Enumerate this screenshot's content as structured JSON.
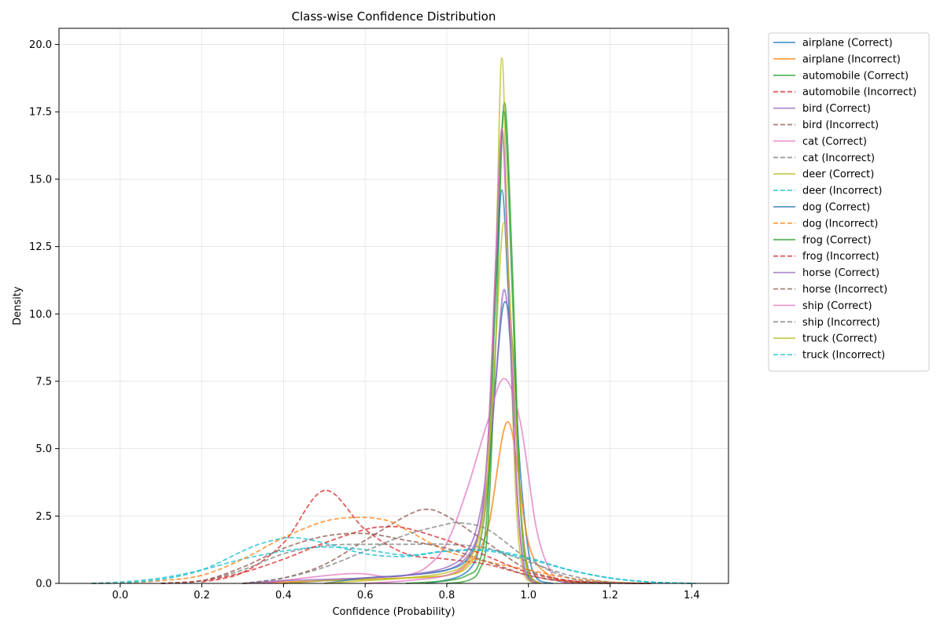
{
  "chart_data": {
    "type": "line",
    "title": "Class-wise Confidence Distribution",
    "xlabel": "Confidence (Probability)",
    "ylabel": "Density",
    "xlim": [
      -0.15,
      1.49
    ],
    "ylim": [
      0,
      20.6
    ],
    "xticks": [
      0.0,
      0.2,
      0.4,
      0.6,
      0.8,
      1.0,
      1.2,
      1.4
    ],
    "xtick_labels": [
      "0.0",
      "0.2",
      "0.4",
      "0.6",
      "0.8",
      "1.0",
      "1.2",
      "1.4"
    ],
    "yticks": [
      0.0,
      2.5,
      5.0,
      7.5,
      10.0,
      12.5,
      15.0,
      17.5,
      20.0
    ],
    "ytick_labels": [
      "0.0",
      "2.5",
      "5.0",
      "7.5",
      "10.0",
      "12.5",
      "15.0",
      "17.5",
      "20.0"
    ],
    "grid": true,
    "legend_position": "outside-top-right",
    "series": [
      {
        "name": "airplane (Correct)",
        "color": "#1f77b4",
        "dashed": false,
        "x": [
          0.75,
          0.82,
          0.86,
          0.88,
          0.9,
          0.92,
          0.94,
          0.96,
          0.98,
          1.0,
          1.02,
          1.06
        ],
        "y": [
          0.0,
          0.2,
          0.6,
          1.4,
          3.5,
          7.5,
          10.4,
          9.0,
          4.2,
          1.2,
          0.2,
          0.0
        ]
      },
      {
        "name": "airplane (Incorrect)",
        "color": "#ff7f0e",
        "dashed": false,
        "x": [
          0.3,
          0.4,
          0.5,
          0.6,
          0.7,
          0.8,
          0.85,
          0.9,
          0.95,
          1.0,
          1.05,
          1.1,
          1.2,
          1.3
        ],
        "y": [
          0.0,
          0.05,
          0.1,
          0.15,
          0.2,
          0.3,
          0.7,
          2.0,
          6.0,
          1.5,
          0.3,
          0.1,
          0.02,
          0.0
        ]
      },
      {
        "name": "automobile (Correct)",
        "color": "#2ca02c",
        "dashed": false,
        "x": [
          0.8,
          0.85,
          0.88,
          0.9,
          0.92,
          0.94,
          0.96,
          0.98,
          1.0,
          1.03
        ],
        "y": [
          0.0,
          0.1,
          0.5,
          2.0,
          9.0,
          17.8,
          12.0,
          3.0,
          0.3,
          0.0
        ]
      },
      {
        "name": "automobile (Incorrect)",
        "color": "#d62728",
        "dashed": true,
        "x": [
          0.2,
          0.3,
          0.4,
          0.5,
          0.6,
          0.7,
          0.8,
          0.9,
          1.0,
          1.1,
          1.2
        ],
        "y": [
          0.05,
          0.4,
          1.5,
          3.45,
          2.0,
          1.1,
          0.9,
          0.7,
          0.3,
          0.05,
          0.0
        ]
      },
      {
        "name": "bird (Correct)",
        "color": "#9467bd",
        "dashed": false,
        "x": [
          0.4,
          0.5,
          0.6,
          0.7,
          0.8,
          0.85,
          0.88,
          0.9,
          0.92,
          0.94,
          0.96,
          0.98,
          1.0,
          1.03
        ],
        "y": [
          0.0,
          0.1,
          0.2,
          0.3,
          0.5,
          1.0,
          2.0,
          4.0,
          7.5,
          10.9,
          8.0,
          3.0,
          0.5,
          0.0
        ]
      },
      {
        "name": "bird (Incorrect)",
        "color": "#8c564b",
        "dashed": true,
        "x": [
          0.3,
          0.4,
          0.5,
          0.6,
          0.7,
          0.75,
          0.8,
          0.9,
          1.0,
          1.1,
          1.2,
          1.3
        ],
        "y": [
          0.0,
          0.2,
          0.7,
          1.6,
          2.5,
          2.75,
          2.5,
          1.5,
          0.5,
          0.1,
          0.02,
          0.0
        ]
      },
      {
        "name": "cat (Correct)",
        "color": "#e377c2",
        "dashed": false,
        "x": [
          0.35,
          0.45,
          0.55,
          0.6,
          0.65,
          0.7,
          0.75,
          0.8,
          0.85,
          0.9,
          0.94,
          0.98,
          1.02,
          1.06,
          1.1
        ],
        "y": [
          0.0,
          0.2,
          0.35,
          0.35,
          0.25,
          0.3,
          0.6,
          1.5,
          3.5,
          6.0,
          7.6,
          6.0,
          2.0,
          0.3,
          0.0
        ]
      },
      {
        "name": "cat (Incorrect)",
        "color": "#7f7f7f",
        "dashed": true,
        "x": [
          0.1,
          0.2,
          0.3,
          0.4,
          0.5,
          0.6,
          0.7,
          0.8,
          0.9,
          1.0,
          1.1,
          1.2,
          1.3
        ],
        "y": [
          0.0,
          0.1,
          0.5,
          1.1,
          1.4,
          1.45,
          1.45,
          1.45,
          1.3,
          0.8,
          0.3,
          0.05,
          0.0
        ]
      },
      {
        "name": "deer (Correct)",
        "color": "#bcbd22",
        "dashed": false,
        "x": [
          0.4,
          0.5,
          0.6,
          0.7,
          0.8,
          0.85,
          0.88,
          0.9,
          0.92,
          0.935,
          0.95,
          0.97,
          0.99,
          1.02
        ],
        "y": [
          0.0,
          0.1,
          0.15,
          0.2,
          0.3,
          0.6,
          1.5,
          4.0,
          12.0,
          19.5,
          12.0,
          3.0,
          0.3,
          0.0
        ]
      },
      {
        "name": "deer (Incorrect)",
        "color": "#17becf",
        "dashed": true,
        "x": [
          -0.07,
          0.0,
          0.1,
          0.2,
          0.3,
          0.4,
          0.5,
          0.6,
          0.7,
          0.8,
          0.9,
          1.0,
          1.1,
          1.2,
          1.3,
          1.41
        ],
        "y": [
          0.0,
          0.05,
          0.2,
          0.5,
          0.9,
          1.2,
          1.35,
          1.25,
          1.05,
          1.2,
          1.2,
          0.9,
          0.5,
          0.2,
          0.05,
          0.0
        ]
      },
      {
        "name": "dog (Correct)",
        "color": "#1f77b4",
        "dashed": false,
        "x": [
          0.5,
          0.6,
          0.7,
          0.8,
          0.85,
          0.88,
          0.9,
          0.92,
          0.935,
          0.95,
          0.97,
          0.99,
          1.02
        ],
        "y": [
          0.0,
          0.2,
          0.3,
          0.5,
          0.9,
          2.0,
          5.0,
          11.0,
          14.6,
          11.0,
          4.0,
          0.6,
          0.0
        ]
      },
      {
        "name": "dog (Incorrect)",
        "color": "#ff7f0e",
        "dashed": true,
        "x": [
          -0.07,
          0.0,
          0.1,
          0.2,
          0.3,
          0.4,
          0.5,
          0.58,
          0.65,
          0.7,
          0.8,
          0.9,
          1.0,
          1.1,
          1.2,
          1.3
        ],
        "y": [
          0.0,
          0.02,
          0.1,
          0.3,
          0.9,
          1.7,
          2.3,
          2.45,
          2.35,
          2.0,
          1.2,
          0.8,
          0.5,
          0.2,
          0.05,
          0.0
        ]
      },
      {
        "name": "frog (Correct)",
        "color": "#2ca02c",
        "dashed": false,
        "x": [
          0.7,
          0.8,
          0.85,
          0.88,
          0.9,
          0.92,
          0.94,
          0.96,
          0.98,
          1.0,
          1.02
        ],
        "y": [
          0.0,
          0.1,
          0.3,
          0.8,
          3.0,
          11.0,
          17.5,
          11.0,
          3.0,
          0.4,
          0.0
        ]
      },
      {
        "name": "frog (Incorrect)",
        "color": "#d62728",
        "dashed": true,
        "x": [
          0.1,
          0.2,
          0.3,
          0.4,
          0.5,
          0.6,
          0.65,
          0.7,
          0.8,
          0.9,
          1.0,
          1.1,
          1.2,
          1.3
        ],
        "y": [
          0.0,
          0.1,
          0.4,
          0.9,
          1.5,
          2.0,
          2.1,
          2.05,
          1.6,
          1.0,
          0.4,
          0.1,
          0.02,
          0.0
        ]
      },
      {
        "name": "horse (Correct)",
        "color": "#9467bd",
        "dashed": false,
        "x": [
          0.3,
          0.4,
          0.5,
          0.6,
          0.7,
          0.8,
          0.85,
          0.88,
          0.9,
          0.92,
          0.935,
          0.95,
          0.97,
          0.99,
          1.02
        ],
        "y": [
          0.0,
          0.1,
          0.15,
          0.2,
          0.3,
          0.6,
          1.2,
          2.5,
          5.0,
          12.0,
          16.8,
          12.0,
          4.0,
          0.5,
          0.0
        ]
      },
      {
        "name": "horse (Incorrect)",
        "color": "#8c564b",
        "dashed": true,
        "x": [
          0.1,
          0.2,
          0.3,
          0.4,
          0.5,
          0.6,
          0.7,
          0.8,
          0.9,
          1.0,
          1.1,
          1.2
        ],
        "y": [
          0.0,
          0.1,
          0.6,
          1.3,
          1.75,
          1.85,
          1.6,
          1.3,
          0.8,
          0.3,
          0.05,
          0.0
        ]
      },
      {
        "name": "ship (Correct)",
        "color": "#e377c2",
        "dashed": false,
        "x": [
          0.6,
          0.7,
          0.8,
          0.85,
          0.88,
          0.9,
          0.92,
          0.935,
          0.95,
          0.97,
          0.99,
          1.02
        ],
        "y": [
          0.0,
          0.1,
          0.3,
          0.8,
          2.0,
          5.0,
          12.0,
          16.9,
          12.0,
          4.0,
          0.5,
          0.0
        ]
      },
      {
        "name": "ship (Incorrect)",
        "color": "#7f7f7f",
        "dashed": true,
        "x": [
          0.3,
          0.4,
          0.5,
          0.6,
          0.7,
          0.8,
          0.83,
          0.9,
          1.0,
          1.1,
          1.2,
          1.3
        ],
        "y": [
          0.0,
          0.2,
          0.6,
          1.2,
          1.8,
          2.2,
          2.25,
          2.0,
          0.9,
          0.2,
          0.03,
          0.0
        ]
      },
      {
        "name": "truck (Correct)",
        "color": "#bcbd22",
        "dashed": false,
        "x": [
          0.5,
          0.6,
          0.7,
          0.8,
          0.85,
          0.88,
          0.9,
          0.92,
          0.94,
          0.96,
          0.98,
          1.0,
          1.03
        ],
        "y": [
          0.0,
          0.1,
          0.2,
          0.4,
          0.8,
          1.8,
          4.0,
          9.0,
          13.4,
          9.0,
          3.0,
          0.4,
          0.0
        ]
      },
      {
        "name": "truck (Incorrect)",
        "color": "#17becf",
        "dashed": true,
        "x": [
          -0.07,
          0.0,
          0.1,
          0.2,
          0.3,
          0.35,
          0.42,
          0.5,
          0.6,
          0.7,
          0.8,
          0.9,
          1.0,
          1.1,
          1.2,
          1.3,
          1.4
        ],
        "y": [
          0.0,
          0.02,
          0.15,
          0.5,
          1.2,
          1.5,
          1.7,
          1.5,
          1.1,
          1.0,
          1.2,
          1.25,
          0.95,
          0.5,
          0.2,
          0.05,
          0.0
        ]
      }
    ]
  }
}
